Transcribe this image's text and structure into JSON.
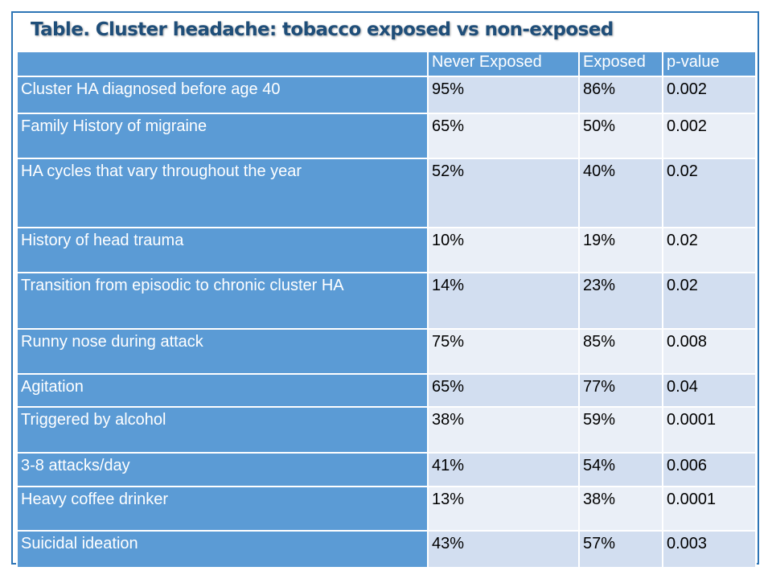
{
  "title": "Table. Cluster headache: tobacco exposed vs non-exposed",
  "table": {
    "headers": [
      "",
      "Never Exposed",
      "Exposed",
      "p-value"
    ],
    "rows": [
      {
        "label": "Cluster HA diagnosed before age 40",
        "never": "95%",
        "exposed": "86%",
        "p": "0.002"
      },
      {
        "label": "Family History of migraine",
        "never": "65%",
        "exposed": "50%",
        "p": "0.002"
      },
      {
        "label": "HA cycles that vary throughout the year",
        "never": "52%",
        "exposed": "40%",
        "p": "0.02"
      },
      {
        "label": "History of head trauma",
        "never": "10%",
        "exposed": "19%",
        "p": "0.02"
      },
      {
        "label": "Transition from episodic to chronic cluster HA",
        "never": "14%",
        "exposed": "23%",
        "p": "0.02"
      },
      {
        "label": "Runny nose during attack",
        "never": "75%",
        "exposed": "85%",
        "p": "0.008"
      },
      {
        "label": "Agitation",
        "never": "65%",
        "exposed": "77%",
        "p": "0.04"
      },
      {
        "label": "Triggered by alcohol",
        "never": "38%",
        "exposed": "59%",
        "p": "0.0001"
      },
      {
        "label": "3-8 attacks/day",
        "never": "41%",
        "exposed": "54%",
        "p": "0.006"
      },
      {
        "label": "Heavy coffee drinker",
        "never": "13%",
        "exposed": "38%",
        "p": "0.0001"
      },
      {
        "label": "Suicidal ideation",
        "never": "43%",
        "exposed": "57%",
        "p": "0.003"
      }
    ]
  },
  "colors": {
    "header_fill": "#5b9bd5",
    "row_fill_dark": "#d2def0",
    "row_fill_light": "#eaeff7",
    "title_color": "#1f4e79",
    "frame_border": "#2e75b6"
  }
}
